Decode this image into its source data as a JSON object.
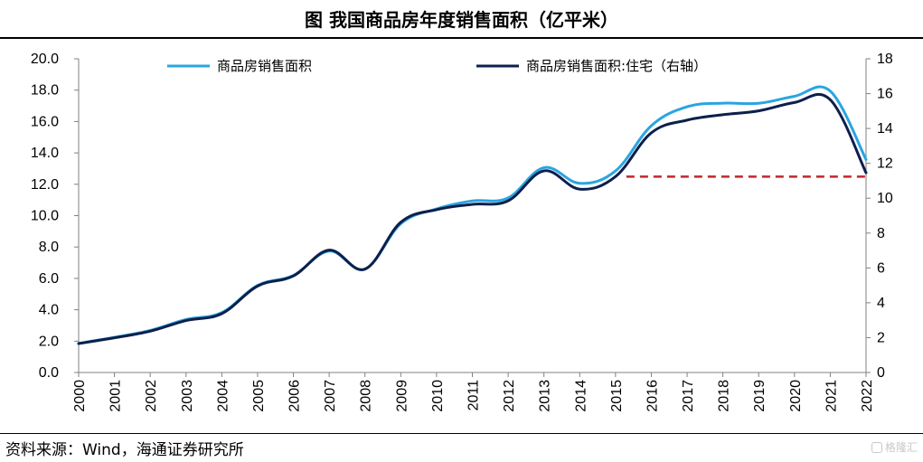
{
  "title": "图 我国商品房年度销售面积（亿平米）",
  "source": "资料来源：Wind，海通证券研究所",
  "watermark": "格隆汇",
  "colors": {
    "series1": "#2aa5e0",
    "series2": "#0d1f4c",
    "reference": "#c0282d"
  },
  "chart_data": {
    "type": "line",
    "x": [
      "2000",
      "2001",
      "2002",
      "2003",
      "2004",
      "2005",
      "2006",
      "2007",
      "2008",
      "2009",
      "2010",
      "2011",
      "2012",
      "2013",
      "2014",
      "2015",
      "2016",
      "2017",
      "2018",
      "2019",
      "2020",
      "2021",
      "2022"
    ],
    "y_left": {
      "ylim": [
        0,
        20
      ],
      "ticks": [
        "0.0",
        "2.0",
        "4.0",
        "6.0",
        "8.0",
        "10.0",
        "12.0",
        "14.0",
        "16.0",
        "18.0",
        "20.0"
      ]
    },
    "y_right": {
      "ylim": [
        0,
        18
      ],
      "ticks": [
        "0",
        "2",
        "4",
        "6",
        "8",
        "10",
        "12",
        "14",
        "16",
        "18"
      ]
    },
    "series": [
      {
        "name": "商品房销售面积",
        "axis": "left",
        "values": [
          1.86,
          2.24,
          2.68,
          3.38,
          3.82,
          5.55,
          6.19,
          7.74,
          6.6,
          9.48,
          10.43,
          10.94,
          11.13,
          13.06,
          12.06,
          12.85,
          15.73,
          16.94,
          17.17,
          17.16,
          17.61,
          17.94,
          13.58
        ]
      },
      {
        "name": "商品房销售面积:住宅（右轴）",
        "axis": "right",
        "values": [
          1.66,
          1.99,
          2.37,
          2.98,
          3.38,
          4.96,
          5.54,
          7.02,
          5.93,
          8.62,
          9.34,
          9.65,
          9.85,
          11.57,
          10.52,
          11.24,
          13.75,
          14.48,
          14.79,
          15.01,
          15.49,
          15.65,
          11.46
        ]
      }
    ],
    "reference_line": {
      "axis": "right",
      "value": 11.24,
      "from": "2015",
      "to": "2022",
      "style": "dashed"
    },
    "legend_placement": "top",
    "grid": false
  }
}
